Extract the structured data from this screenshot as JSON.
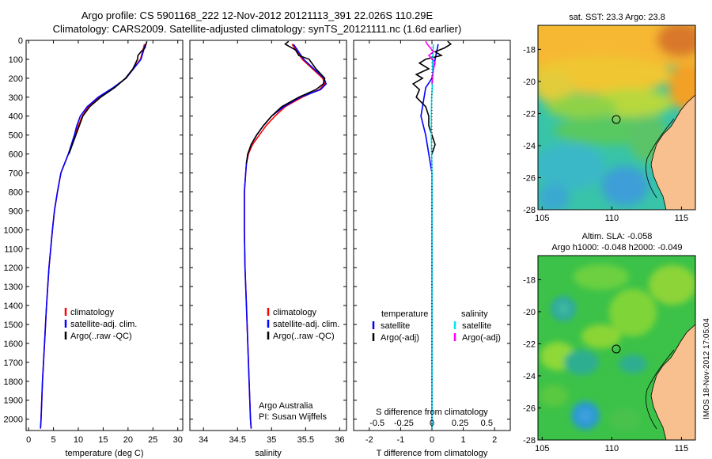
{
  "header": {
    "title_line1": "Argo profile: CS 5901168_222 12-Nov-2012 20121113_391 22.026S 110.29E",
    "title_line2": "Climatology: CARS2009. Satellite-adjusted climatology: synTS_20121111.nc (1.6d earlier)"
  },
  "colors": {
    "climatology": "#ff0000",
    "satellite": "#0000ff",
    "argo": "#000000",
    "salinity_satellite": "#00e5ee",
    "salinity_argo": "#ff00ff",
    "land": "#f7c08e"
  },
  "chart_data": [
    {
      "type": "line",
      "panel": "temperature",
      "xlabel": "temperature (deg C)",
      "ylabel": "",
      "xlim": [
        -0.5,
        31
      ],
      "ylim": [
        0,
        2060
      ],
      "y_reversed": true,
      "xticks": [
        0,
        5,
        10,
        15,
        20,
        25,
        30
      ],
      "yticks": [
        0,
        100,
        200,
        300,
        400,
        500,
        600,
        700,
        800,
        900,
        1000,
        1100,
        1200,
        1300,
        1400,
        1500,
        1600,
        1700,
        1800,
        1900,
        2000
      ],
      "legend": [
        "climatology",
        "satellite-adj. clim.",
        "Argo(..raw -QC)"
      ],
      "series": [
        {
          "name": "climatology",
          "color": "#ff0000",
          "depth": [
            20,
            100,
            150,
            200,
            250,
            300,
            350,
            400,
            450,
            500,
            600,
            700,
            800,
            900,
            1000,
            1200,
            1400,
            1600,
            1800,
            2000,
            2050
          ],
          "values": [
            23.3,
            22.5,
            21.0,
            19.5,
            17.2,
            14.2,
            12.0,
            10.8,
            10.0,
            9.3,
            8.0,
            6.5,
            5.8,
            5.2,
            4.8,
            4.1,
            3.6,
            3.2,
            2.8,
            2.5,
            2.4
          ]
        },
        {
          "name": "satellite-adj. clim.",
          "color": "#0000ff",
          "depth": [
            20,
            100,
            150,
            200,
            250,
            300,
            350,
            400,
            450,
            500,
            600,
            700,
            800,
            900,
            1000,
            1200,
            1400,
            1600,
            1800,
            2000,
            2050
          ],
          "values": [
            23.5,
            22.6,
            21.1,
            19.6,
            17.0,
            14.0,
            11.8,
            10.4,
            9.7,
            9.2,
            8.0,
            6.5,
            5.8,
            5.2,
            4.8,
            4.1,
            3.6,
            3.2,
            2.8,
            2.5,
            2.4
          ]
        },
        {
          "name": "Argo(..raw -QC)",
          "color": "#000000",
          "depth": [
            5,
            20,
            40,
            60,
            80,
            100,
            150,
            200,
            250,
            300,
            350,
            400,
            450,
            500,
            550,
            600
          ],
          "values": [
            23.8,
            23.6,
            23.4,
            22.6,
            22.0,
            21.9,
            21.0,
            19.5,
            17.3,
            14.5,
            12.3,
            10.9,
            10.2,
            9.5,
            8.8,
            8.1
          ]
        }
      ]
    },
    {
      "type": "line",
      "panel": "salinity",
      "xlabel": "salinity",
      "ylabel": "",
      "xlim": [
        33.8,
        36.1
      ],
      "ylim": [
        0,
        2060
      ],
      "y_reversed": true,
      "xticks": [
        34,
        34.5,
        35,
        35.5,
        36
      ],
      "legend": [
        "climatology",
        "satellite-adj. clim.",
        "Argo(..raw -QC)"
      ],
      "annotation": [
        "Argo Australia",
        "PI: Susan Wijffels"
      ],
      "series": [
        {
          "name": "climatology",
          "color": "#ff0000",
          "depth": [
            20,
            100,
            150,
            200,
            230,
            260,
            300,
            350,
            400,
            450,
            500,
            550,
            600,
            650,
            700,
            800,
            900,
            1000,
            1200,
            1400,
            1600,
            1800,
            2000,
            2050
          ],
          "values": [
            35.3,
            35.45,
            35.6,
            35.75,
            35.78,
            35.7,
            35.45,
            35.2,
            35.05,
            34.92,
            34.82,
            34.72,
            34.66,
            34.63,
            34.62,
            34.6,
            34.6,
            34.6,
            34.61,
            34.63,
            34.65,
            34.67,
            34.69,
            34.7
          ]
        },
        {
          "name": "satellite-adj. clim.",
          "color": "#0000ff",
          "depth": [
            20,
            100,
            150,
            200,
            230,
            260,
            300,
            350,
            400,
            450,
            500,
            550,
            600,
            650,
            700,
            800,
            900,
            1000,
            1200,
            1400,
            1600,
            1800,
            2000,
            2050
          ],
          "values": [
            35.32,
            35.47,
            35.62,
            35.77,
            35.8,
            35.72,
            35.42,
            35.18,
            35.0,
            34.88,
            34.78,
            34.7,
            34.65,
            34.63,
            34.62,
            34.6,
            34.6,
            34.6,
            34.61,
            34.63,
            34.65,
            34.67,
            34.69,
            34.7
          ]
        },
        {
          "name": "Argo(..raw -QC)",
          "color": "#000000",
          "depth": [
            5,
            20,
            50,
            80,
            100,
            150,
            200,
            230,
            260,
            300,
            350,
            400,
            450,
            500,
            550,
            600,
            650
          ],
          "values": [
            35.25,
            35.2,
            35.35,
            35.4,
            35.55,
            35.65,
            35.78,
            35.76,
            35.65,
            35.4,
            35.15,
            35.0,
            34.88,
            34.78,
            34.7,
            34.65,
            34.63
          ]
        }
      ]
    },
    {
      "type": "line",
      "panel": "difference",
      "xlabel": "T difference from climatology",
      "xlabel_top": "S difference from climatology",
      "xlim": [
        -2.5,
        2.5
      ],
      "ylim": [
        0,
        2060
      ],
      "y_reversed": true,
      "xticks": [
        -2,
        -1,
        0,
        1,
        2
      ],
      "xticks_salinity": [
        "-0.5",
        "-0.25",
        "0",
        "0.25",
        "0.5"
      ],
      "legend": {
        "temperature_title": "temperature",
        "salinity_title": "salinity",
        "items": [
          "satellite",
          "Argo(-adj)",
          "satellite",
          "Argo(-adj)"
        ]
      },
      "series": [
        {
          "name": "satellite",
          "color": "#0000ff",
          "depth": [
            20,
            100,
            150,
            200,
            250,
            300,
            400,
            500,
            600,
            700,
            800,
            1000,
            1200,
            1400,
            1600,
            1800,
            2000,
            2050
          ],
          "values": [
            0.2,
            0.1,
            0.05,
            0.0,
            -0.2,
            -0.25,
            -0.35,
            -0.2,
            -0.1,
            0.0,
            0.0,
            0.0,
            0.0,
            0.0,
            0.0,
            0.0,
            0.0,
            0.0
          ]
        },
        {
          "name": "Argo(-adj)",
          "color": "#000000",
          "depth": [
            5,
            20,
            40,
            60,
            80,
            100,
            120,
            150,
            180,
            200,
            230,
            260,
            300,
            350,
            400,
            450,
            500,
            550,
            600
          ],
          "values": [
            0.5,
            0.6,
            0.4,
            0.1,
            0.3,
            -0.2,
            -0.4,
            -0.1,
            -0.5,
            -0.3,
            -0.6,
            -0.4,
            -0.5,
            -0.2,
            -0.1,
            -0.1,
            0.0,
            0.1,
            0.0
          ]
        },
        {
          "name": "salinity satellite",
          "color": "#00e5ee",
          "depth": [
            20,
            100,
            150,
            200,
            250,
            300,
            400,
            500,
            600,
            700,
            800,
            1000,
            1200,
            1400,
            1600,
            1800,
            2000,
            2050
          ],
          "values": [
            0.05,
            0.02,
            0.02,
            0.02,
            0.01,
            -0.01,
            -0.02,
            -0.02,
            -0.01,
            0.0,
            0.0,
            0.0,
            0.0,
            0.0,
            0.0,
            0.0,
            0.0,
            0.0
          ]
        },
        {
          "name": "salinity Argo(-adj)",
          "color": "#ff00ff",
          "depth": [
            5,
            20,
            40,
            60,
            80,
            100,
            120,
            150,
            200,
            230
          ],
          "values": [
            -0.2,
            -0.15,
            -0.05,
            0.05,
            -0.1,
            0.02,
            0.1,
            0.05,
            0.02,
            0.0
          ]
        }
      ]
    },
    {
      "type": "heatmap",
      "panel": "sst_map",
      "title": "sat. SST: 23.3 Argo: 23.8",
      "xlim": [
        104.7,
        116
      ],
      "ylim": [
        -28,
        -16.5
      ],
      "xticks": [
        105,
        110,
        115
      ],
      "yticks": [
        -18,
        -20,
        -22,
        -24,
        -26,
        -28
      ],
      "marker": {
        "lon": 110.29,
        "lat": -22.026
      }
    },
    {
      "type": "heatmap",
      "panel": "sla_map",
      "title": "Altim. SLA: -0.058",
      "subtitle": "Argo h1000: -0.048 h2000: -0.049",
      "xlim": [
        104.7,
        116
      ],
      "ylim": [
        -28,
        -16.5
      ],
      "xticks": [
        105,
        110,
        115
      ],
      "yticks": [
        -18,
        -20,
        -22,
        -24,
        -26,
        -28
      ],
      "marker": {
        "lon": 110.29,
        "lat": -22.026
      }
    }
  ],
  "footer": {
    "stamp": "IMOS 18-Nov-2012 17:05:04"
  }
}
